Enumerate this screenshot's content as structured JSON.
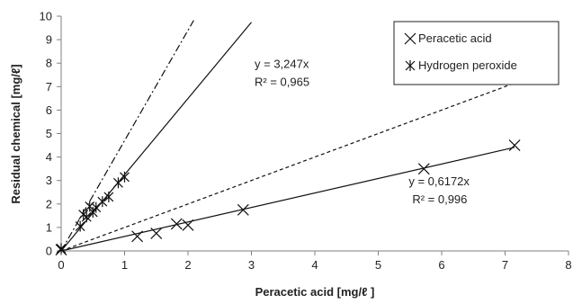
{
  "chart_data": {
    "type": "scatter",
    "xlabel": "Peracetic acid [mg/ℓ ]",
    "ylabel": "Residual chemical [mg/ℓ]",
    "xlim": [
      0,
      8
    ],
    "ylim": [
      0,
      10
    ],
    "x_ticks": [
      0,
      1,
      2,
      3,
      4,
      5,
      6,
      7,
      8
    ],
    "y_ticks": [
      0,
      1,
      2,
      3,
      4,
      5,
      6,
      7,
      8,
      9,
      10
    ],
    "x_tick_labels": [
      "0",
      "1",
      "2",
      "3",
      "4",
      "5",
      "6",
      "7",
      "8"
    ],
    "y_tick_labels": [
      "0",
      "1",
      "2",
      "3",
      "4",
      "5",
      "6",
      "7",
      "8",
      "9",
      "10"
    ],
    "grid": false,
    "legend_position": "top-right",
    "series": [
      {
        "name": "Peracetic acid",
        "marker": "x",
        "points": [
          [
            0,
            0.05
          ],
          [
            1.2,
            0.62
          ],
          [
            1.5,
            0.75
          ],
          [
            1.82,
            1.15
          ],
          [
            2.0,
            1.1
          ],
          [
            2.87,
            1.75
          ],
          [
            5.72,
            3.5
          ],
          [
            7.15,
            4.5
          ]
        ]
      },
      {
        "name": "Hydrogen peroxide",
        "marker": "asterisk",
        "points": [
          [
            0,
            0.1
          ],
          [
            0.3,
            1.05
          ],
          [
            0.35,
            1.55
          ],
          [
            0.4,
            1.45
          ],
          [
            0.45,
            1.9
          ],
          [
            0.5,
            1.65
          ],
          [
            0.55,
            1.85
          ],
          [
            0.65,
            2.1
          ],
          [
            0.75,
            2.3
          ],
          [
            0.9,
            2.9
          ],
          [
            1.0,
            3.15
          ]
        ]
      }
    ],
    "lines": [
      {
        "style": "solid",
        "slope": 3.247,
        "x_end": 3.0
      },
      {
        "style": "solid",
        "slope": 0.6172,
        "x_end": 7.15
      },
      {
        "style": "dashdot",
        "slope": 4.7,
        "x_end": 2.09
      },
      {
        "style": "dashed",
        "slope": 1.0,
        "x_end": 7.15
      }
    ],
    "annotations": [
      {
        "line1": "y = 3,247x",
        "line2": "R² = 0,965",
        "x": 3.05,
        "y": 7.8
      },
      {
        "line1": "y = 0,6172x",
        "line2": "R² = 0,996",
        "x": 5.48,
        "y": 2.8
      }
    ]
  }
}
